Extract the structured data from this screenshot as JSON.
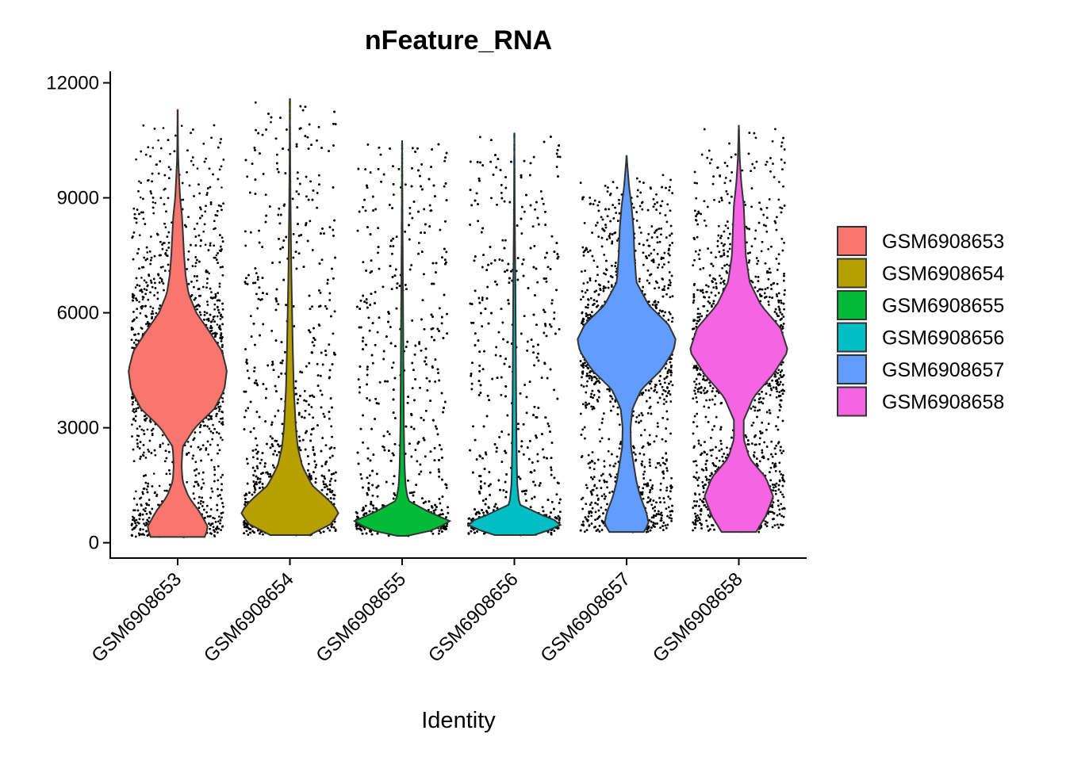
{
  "chart_data": {
    "type": "violin",
    "title": "nFeature_RNA",
    "xlabel": "Identity",
    "ylabel": "",
    "ylim": [
      -400,
      12300
    ],
    "yticks": [
      0,
      3000,
      6000,
      9000,
      12000
    ],
    "categories": [
      "GSM6908653",
      "GSM6908654",
      "GSM6908655",
      "GSM6908656",
      "GSM6908657",
      "GSM6908658"
    ],
    "legend": {
      "placement": "right"
    },
    "grid": false,
    "series": [
      {
        "name": "GSM6908653",
        "color": "#F8766D",
        "min": 150,
        "max": 11300,
        "points_top": 10900,
        "density": [
          [
            150,
            0.55
          ],
          [
            400,
            0.62
          ],
          [
            800,
            0.45
          ],
          [
            1200,
            0.22
          ],
          [
            1600,
            0.1
          ],
          [
            2000,
            0.08
          ],
          [
            2500,
            0.1
          ],
          [
            3000,
            0.35
          ],
          [
            3500,
            0.75
          ],
          [
            4000,
            0.95
          ],
          [
            4500,
            1.0
          ],
          [
            5000,
            0.9
          ],
          [
            5500,
            0.65
          ],
          [
            6000,
            0.38
          ],
          [
            6500,
            0.22
          ],
          [
            7000,
            0.16
          ],
          [
            7500,
            0.13
          ],
          [
            8000,
            0.11
          ],
          [
            8500,
            0.09
          ],
          [
            9000,
            0.05
          ],
          [
            9500,
            0.03
          ],
          [
            10000,
            0.012
          ],
          [
            10500,
            0.006
          ],
          [
            11300,
            0.0
          ]
        ]
      },
      {
        "name": "GSM6908654",
        "color": "#B79F00",
        "min": 200,
        "max": 11600,
        "points_top": 11500,
        "density": [
          [
            200,
            0.4
          ],
          [
            500,
            0.85
          ],
          [
            800,
            1.0
          ],
          [
            1100,
            0.8
          ],
          [
            1500,
            0.45
          ],
          [
            2000,
            0.25
          ],
          [
            2500,
            0.16
          ],
          [
            3000,
            0.12
          ],
          [
            4000,
            0.08
          ],
          [
            5000,
            0.06
          ],
          [
            6000,
            0.045
          ],
          [
            7000,
            0.03
          ],
          [
            8000,
            0.02
          ],
          [
            9000,
            0.012
          ],
          [
            10000,
            0.006
          ],
          [
            11600,
            0.0
          ]
        ]
      },
      {
        "name": "GSM6908655",
        "color": "#00BA38",
        "min": 180,
        "max": 10500,
        "points_top": 10400,
        "density": [
          [
            180,
            0.1
          ],
          [
            300,
            0.55
          ],
          [
            550,
            1.0
          ],
          [
            800,
            0.55
          ],
          [
            1100,
            0.12
          ],
          [
            1500,
            0.07
          ],
          [
            2000,
            0.05
          ],
          [
            3000,
            0.035
          ],
          [
            4000,
            0.03
          ],
          [
            5000,
            0.025
          ],
          [
            6000,
            0.02
          ],
          [
            7000,
            0.015
          ],
          [
            8000,
            0.01
          ],
          [
            9000,
            0.005
          ],
          [
            10500,
            0.0
          ]
        ]
      },
      {
        "name": "GSM6908656",
        "color": "#00BFC4",
        "min": 200,
        "max": 10700,
        "points_top": 10600,
        "density": [
          [
            200,
            0.4
          ],
          [
            350,
            0.75
          ],
          [
            500,
            1.0
          ],
          [
            700,
            0.6
          ],
          [
            1000,
            0.1
          ],
          [
            1500,
            0.06
          ],
          [
            2000,
            0.05
          ],
          [
            3000,
            0.04
          ],
          [
            4000,
            0.035
          ],
          [
            5000,
            0.03
          ],
          [
            6000,
            0.025
          ],
          [
            7000,
            0.02
          ],
          [
            8000,
            0.012
          ],
          [
            9000,
            0.006
          ],
          [
            10700,
            0.0
          ]
        ]
      },
      {
        "name": "GSM6908657",
        "color": "#619CFF",
        "min": 280,
        "max": 10100,
        "points_top": 9600,
        "density": [
          [
            280,
            0.35
          ],
          [
            500,
            0.45
          ],
          [
            800,
            0.4
          ],
          [
            1200,
            0.28
          ],
          [
            1600,
            0.2
          ],
          [
            2000,
            0.15
          ],
          [
            2500,
            0.09
          ],
          [
            3000,
            0.08
          ],
          [
            3500,
            0.12
          ],
          [
            4000,
            0.3
          ],
          [
            4500,
            0.7
          ],
          [
            5000,
            0.95
          ],
          [
            5300,
            1.0
          ],
          [
            5700,
            0.85
          ],
          [
            6200,
            0.45
          ],
          [
            6800,
            0.2
          ],
          [
            7500,
            0.16
          ],
          [
            8200,
            0.14
          ],
          [
            8800,
            0.1
          ],
          [
            9300,
            0.05
          ],
          [
            10100,
            0.0
          ]
        ]
      },
      {
        "name": "GSM6908658",
        "color": "#F564E3",
        "min": 280,
        "max": 10900,
        "points_top": 10800,
        "density": [
          [
            280,
            0.35
          ],
          [
            700,
            0.55
          ],
          [
            1200,
            0.7
          ],
          [
            1700,
            0.55
          ],
          [
            2200,
            0.22
          ],
          [
            2700,
            0.1
          ],
          [
            3200,
            0.1
          ],
          [
            3800,
            0.3
          ],
          [
            4400,
            0.7
          ],
          [
            5000,
            1.0
          ],
          [
            5600,
            0.85
          ],
          [
            6200,
            0.45
          ],
          [
            6800,
            0.22
          ],
          [
            7500,
            0.14
          ],
          [
            8200,
            0.12
          ],
          [
            8800,
            0.1
          ],
          [
            9400,
            0.05
          ],
          [
            10000,
            0.02
          ],
          [
            10900,
            0.0
          ]
        ]
      }
    ]
  }
}
